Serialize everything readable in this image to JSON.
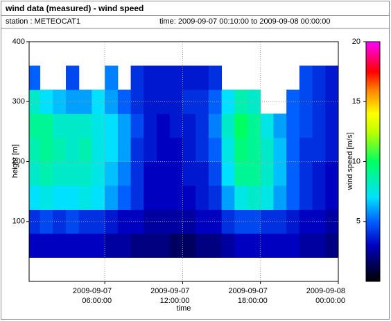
{
  "chart_data": {
    "type": "heatmap",
    "title": "wind data (measured) - wind speed",
    "station": "station : METEOCAT1",
    "period": "time: 2009-09-07 00:10:00 to 2009-09-08 00:00:00",
    "x_label": "time",
    "y_label": "height [m]",
    "colorbar_label": "wind speed [m/s]",
    "xlim": [
      0.1667,
      24
    ],
    "xticks": [
      {
        "value": 6,
        "label": "2009-09-07 06:00:00"
      },
      {
        "value": 12,
        "label": "2009-09-07 12:00:00"
      },
      {
        "value": 18,
        "label": "2009-09-07 18:00:00"
      },
      {
        "value": 24,
        "label": "2009-09-08 00:00:00"
      }
    ],
    "ylim": [
      0,
      400
    ],
    "yticks": [
      100,
      200,
      300,
      400
    ],
    "grid": true,
    "x": [
      0.5,
      1.5,
      2.5,
      3.5,
      4.5,
      5.5,
      6.5,
      7.5,
      8.5,
      9.5,
      10.5,
      11.5,
      12.5,
      13.5,
      14.5,
      15.5,
      16.5,
      17.5,
      18.5,
      19.5,
      20.5,
      21.5,
      22.5,
      23.5
    ],
    "y_bins": [
      40,
      80,
      120,
      160,
      200,
      240,
      280,
      320,
      360
    ],
    "z": [
      [
        3,
        3,
        3,
        3,
        3,
        3,
        2.5,
        2.5,
        2,
        2,
        2,
        1.5,
        1.5,
        2,
        2,
        2.5,
        3,
        3,
        3,
        3,
        3,
        2.5,
        2.5,
        2
      ],
      [
        4,
        4.5,
        4,
        4.5,
        4,
        4,
        3.5,
        3,
        3,
        2.5,
        2.5,
        2.5,
        2.5,
        3,
        3,
        4,
        4.5,
        4.5,
        4,
        4,
        3.5,
        3,
        3,
        2.5
      ],
      [
        7,
        7.5,
        7,
        7,
        7.5,
        7,
        6,
        5,
        4,
        3,
        3,
        3,
        3,
        3.5,
        4,
        6,
        7.5,
        8,
        7.5,
        6,
        5,
        4,
        3.5,
        3
      ],
      [
        8,
        8.5,
        8,
        8,
        8,
        7.5,
        6.5,
        5.5,
        4,
        3,
        3,
        3,
        3.5,
        3.5,
        4.5,
        7,
        9,
        9,
        8,
        6.5,
        5,
        4,
        3.5,
        3
      ],
      [
        8.5,
        9,
        8.5,
        8,
        8.5,
        7.5,
        7,
        6,
        4,
        3.5,
        3,
        3,
        3.5,
        4,
        5,
        7.5,
        9.5,
        9,
        8,
        6.5,
        5,
        4,
        4,
        3.5
      ],
      [
        9,
        9,
        8,
        8,
        8,
        7.5,
        7,
        6,
        4.5,
        3.5,
        3,
        3.5,
        3.5,
        4,
        5.5,
        8,
        10,
        9,
        7.5,
        6,
        5,
        4.5,
        4,
        3.5
      ],
      [
        8,
        7,
        6.5,
        6,
        6,
        7,
        6,
        5,
        4,
        3.5,
        3.5,
        3.5,
        4,
        4,
        5,
        7,
        8.5,
        8,
        null,
        null,
        5,
        4.5,
        4,
        3.5
      ],
      [
        5,
        null,
        null,
        4.5,
        null,
        null,
        5.5,
        null,
        4,
        3.5,
        3.5,
        3.5,
        3.5,
        3.5,
        4,
        null,
        null,
        null,
        null,
        null,
        null,
        4.5,
        4,
        3.5
      ]
    ],
    "clim": [
      0,
      20
    ],
    "cticks": [
      5,
      10,
      15,
      20
    ],
    "colorscale": [
      [
        0,
        "#000000"
      ],
      [
        1,
        "#000040"
      ],
      [
        3,
        "#0000c0"
      ],
      [
        5,
        "#0060ff"
      ],
      [
        7,
        "#00e0ff"
      ],
      [
        10,
        "#00ff60"
      ],
      [
        12.5,
        "#c0ff00"
      ],
      [
        14,
        "#ffff00"
      ],
      [
        16,
        "#ff8000"
      ],
      [
        17.5,
        "#ff0000"
      ],
      [
        20,
        "#ff00ff"
      ]
    ]
  }
}
